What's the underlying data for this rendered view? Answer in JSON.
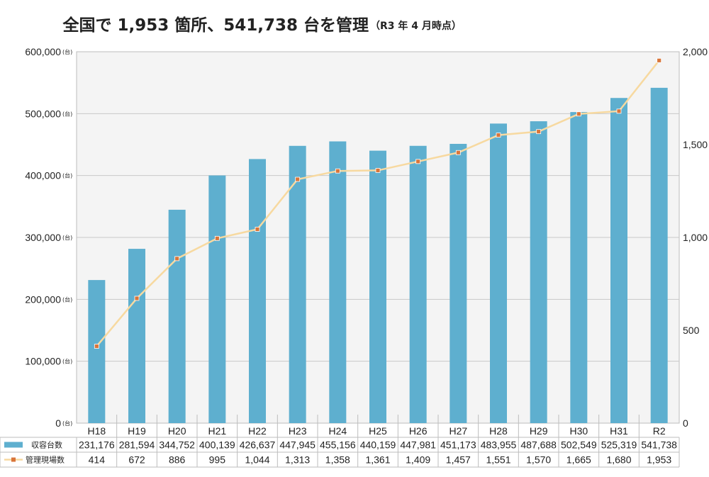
{
  "chart_data": {
    "type": "bar",
    "title": "全国で 1,953 箇所、541,738 台を管理",
    "subtitle": "（R3 年 4 月時点）",
    "categories": [
      "H18",
      "H19",
      "H20",
      "H21",
      "H22",
      "H23",
      "H24",
      "H25",
      "H26",
      "H27",
      "H28",
      "H29",
      "H30",
      "H31",
      "R2"
    ],
    "series": [
      {
        "name": "収容台数",
        "type": "bar",
        "axis": "left",
        "color": "#5eafcf",
        "values": [
          231176,
          281594,
          344752,
          400139,
          426637,
          447945,
          455156,
          440159,
          447981,
          451173,
          483955,
          487688,
          502549,
          525319,
          541738
        ],
        "labels": [
          "231,176",
          "281,594",
          "344,752",
          "400,139",
          "426,637",
          "447,945",
          "455,156",
          "440,159",
          "447,981",
          "451,173",
          "483,955",
          "487,688",
          "502,549",
          "525,319",
          "541,738"
        ]
      },
      {
        "name": "管理現場数",
        "type": "line",
        "axis": "right",
        "color": "#f7d9a0",
        "marker_color": "#d9753a",
        "values": [
          414,
          672,
          886,
          995,
          1044,
          1313,
          1358,
          1361,
          1409,
          1457,
          1551,
          1570,
          1665,
          1680,
          1953
        ],
        "labels": [
          "414",
          "672",
          "886",
          "995",
          "1,044",
          "1,313",
          "1,358",
          "1,361",
          "1,409",
          "1,457",
          "1,551",
          "1,570",
          "1,665",
          "1,680",
          "1,953"
        ]
      }
    ],
    "y_left": {
      "range": [
        0,
        600000
      ],
      "ticks": [
        "0",
        "100,000",
        "200,000",
        "300,000",
        "400,000",
        "500,000",
        "600,000"
      ],
      "unit": "(台)"
    },
    "y_right": {
      "range": [
        0,
        2000
      ],
      "ticks": [
        "0",
        "500",
        "1,000",
        "1,500",
        "2,000"
      ]
    },
    "grid": true,
    "legend": "data-table-below",
    "background": "#f4f4f4"
  }
}
